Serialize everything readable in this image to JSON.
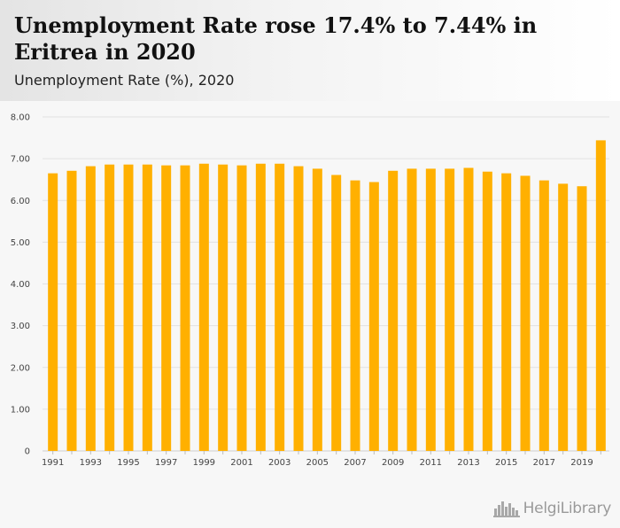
{
  "header": {
    "title": "Unemployment Rate rose 17.4% to 7.44% in Eritrea in 2020",
    "subtitle": "Unemployment Rate (%), 2020"
  },
  "brand": {
    "name": "HelgiLibrary",
    "icon": "city-skyline-icon"
  },
  "colors": {
    "bar": "#FFB000",
    "grid": "#e2e2e2",
    "background": "#f7f7f7"
  },
  "chart_data": {
    "type": "bar",
    "title": "Unemployment Rate rose 17.4% to 7.44% in Eritrea in 2020",
    "subtitle": "Unemployment Rate (%), 2020",
    "xlabel": "",
    "ylabel": "",
    "ylim": [
      0,
      8
    ],
    "yticks": [
      "0",
      "1.00",
      "2.00",
      "3.00",
      "4.00",
      "5.00",
      "6.00",
      "7.00",
      "8.00"
    ],
    "categories": [
      1991,
      1992,
      1993,
      1994,
      1995,
      1996,
      1997,
      1998,
      1999,
      2000,
      2001,
      2002,
      2003,
      2004,
      2005,
      2006,
      2007,
      2008,
      2009,
      2010,
      2011,
      2012,
      2013,
      2014,
      2015,
      2016,
      2017,
      2018,
      2019,
      2020
    ],
    "xtick_labels": [
      "1991",
      "1993",
      "1995",
      "1997",
      "1999",
      "2001",
      "2003",
      "2005",
      "2007",
      "2009",
      "2011",
      "2013",
      "2015",
      "2017",
      "2019"
    ],
    "values": [
      6.65,
      6.71,
      6.82,
      6.86,
      6.86,
      6.86,
      6.84,
      6.84,
      6.88,
      6.86,
      6.84,
      6.88,
      6.88,
      6.82,
      6.76,
      6.61,
      6.48,
      6.44,
      6.71,
      6.76,
      6.76,
      6.76,
      6.78,
      6.69,
      6.65,
      6.59,
      6.48,
      6.4,
      6.34,
      7.44
    ],
    "grid": true,
    "legend": "none"
  }
}
